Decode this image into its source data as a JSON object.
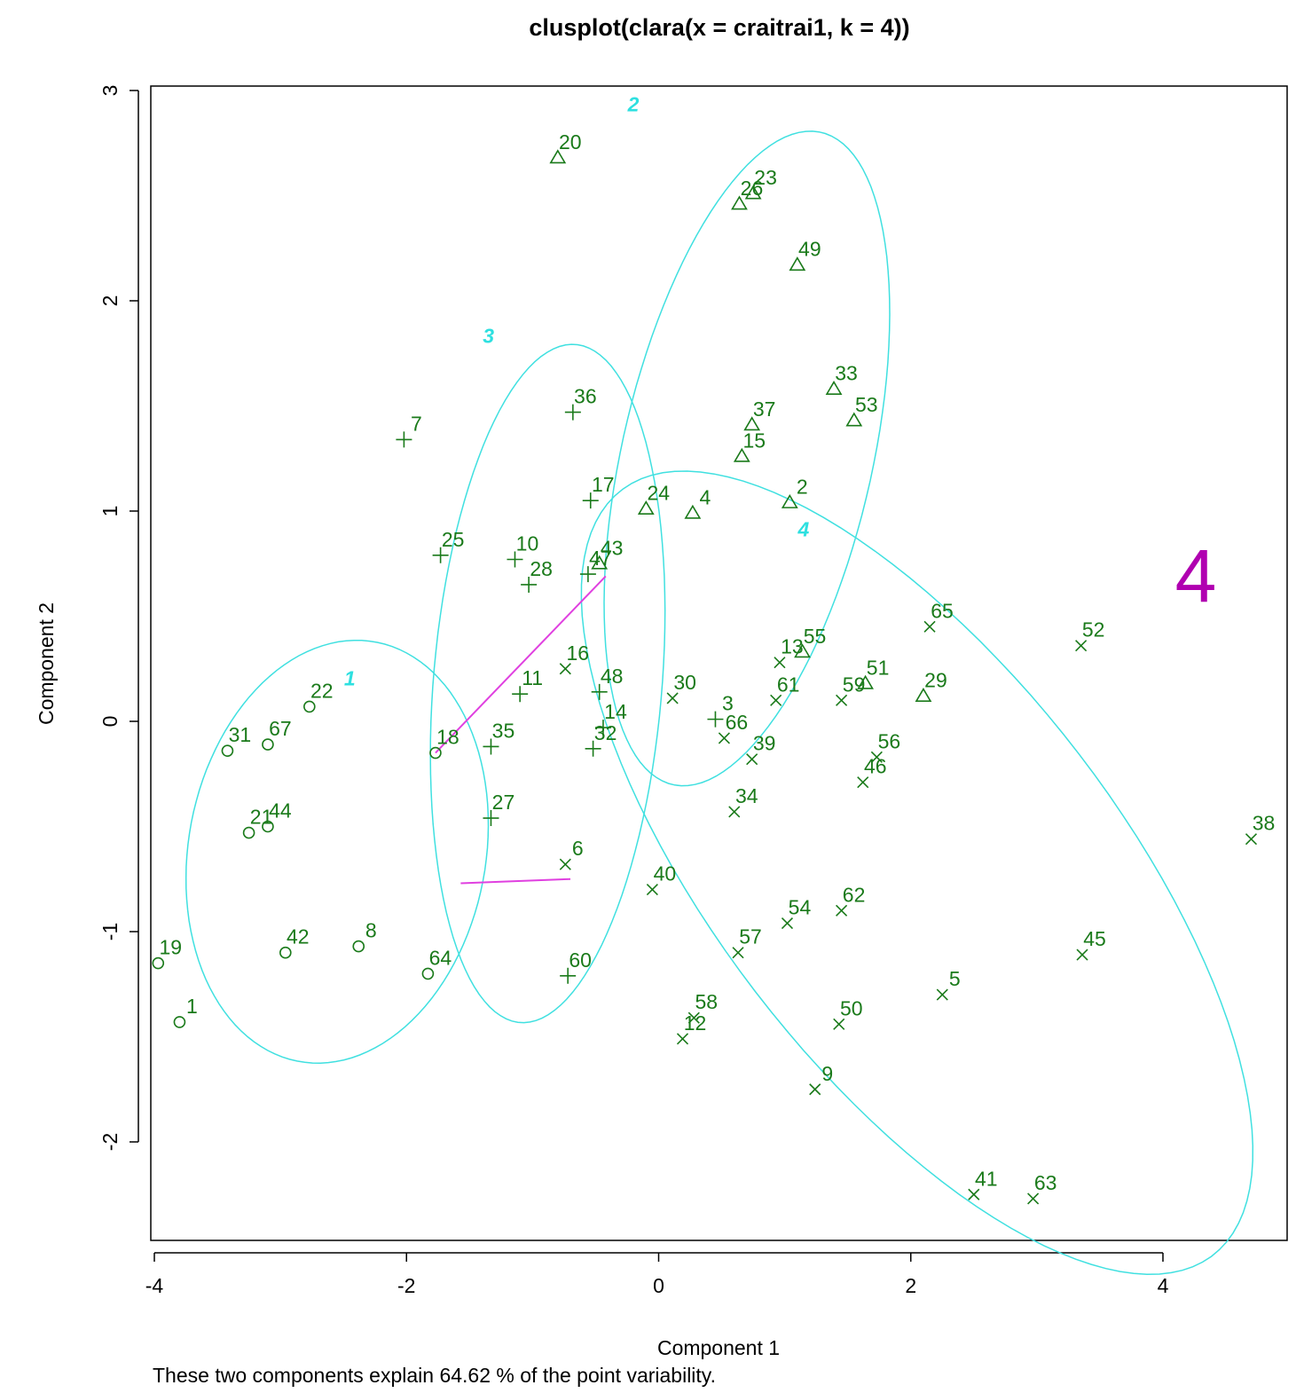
{
  "title": "clusplot(clara(x = craitrai1, k = 4))",
  "xlabel": "Component 1",
  "ylabel": "Component 2",
  "footnote": "These two components explain 64.62 % of the point variability.",
  "annotation": "4",
  "colors": {
    "points": "#1a7a1a",
    "ellipses": "#40e0e0",
    "links": "#e040e0",
    "annotation": "#b000b0"
  },
  "chart_data": {
    "type": "scatter",
    "xlim": [
      -4.0,
      5.0
    ],
    "ylim": [
      -2.45,
      3.0
    ],
    "xticks": [
      -4,
      -2,
      0,
      2,
      4
    ],
    "yticks": [
      -2,
      -1,
      0,
      1,
      2,
      3
    ],
    "x_tick_labels": [
      "-4",
      "-2",
      "0",
      "2",
      "4"
    ],
    "y_tick_labels": [
      "-2",
      "-1",
      "0",
      "1",
      "2",
      "3"
    ],
    "clusters": [
      {
        "label": "1",
        "symbol": "circle",
        "label_x": -2.45,
        "label_y": 0.17,
        "ellipse": {
          "cx": -2.55,
          "cy": -0.62,
          "rx": 1.22,
          "ry": 0.98,
          "angle": 18
        },
        "points": [
          {
            "id": "1",
            "x": -3.8,
            "y": -1.43
          },
          {
            "id": "8",
            "x": -2.38,
            "y": -1.07
          },
          {
            "id": "18",
            "x": -1.77,
            "y": -0.15
          },
          {
            "id": "19",
            "x": -3.97,
            "y": -1.15
          },
          {
            "id": "21",
            "x": -3.25,
            "y": -0.53
          },
          {
            "id": "22",
            "x": -2.77,
            "y": 0.07
          },
          {
            "id": "31",
            "x": -3.42,
            "y": -0.14
          },
          {
            "id": "42",
            "x": -2.96,
            "y": -1.1
          },
          {
            "id": "44",
            "x": -3.1,
            "y": -0.5
          },
          {
            "id": "64",
            "x": -1.83,
            "y": -1.2
          },
          {
            "id": "67",
            "x": -3.1,
            "y": -0.11
          }
        ]
      },
      {
        "label": "2",
        "symbol": "triangle",
        "label_x": -0.2,
        "label_y": 2.9,
        "ellipse": {
          "cx": 0.7,
          "cy": 1.25,
          "rx": 1.68,
          "ry": 0.94,
          "angle": 63
        },
        "points": [
          {
            "id": "2",
            "x": 1.04,
            "y": 1.04
          },
          {
            "id": "4",
            "x": 0.27,
            "y": 0.99
          },
          {
            "id": "15",
            "x": 0.66,
            "y": 1.26
          },
          {
            "id": "20",
            "x": -0.8,
            "y": 2.68
          },
          {
            "id": "23",
            "x": 0.75,
            "y": 2.51
          },
          {
            "id": "24",
            "x": -0.1,
            "y": 1.01
          },
          {
            "id": "26",
            "x": 0.64,
            "y": 2.46
          },
          {
            "id": "29",
            "x": 2.1,
            "y": 0.12
          },
          {
            "id": "33",
            "x": 1.39,
            "y": 1.58
          },
          {
            "id": "37",
            "x": 0.74,
            "y": 1.41
          },
          {
            "id": "43",
            "x": -0.47,
            "y": 0.75
          },
          {
            "id": "49",
            "x": 1.1,
            "y": 2.17
          },
          {
            "id": "51",
            "x": 1.64,
            "y": 0.18
          },
          {
            "id": "53",
            "x": 1.55,
            "y": 1.43
          },
          {
            "id": "55",
            "x": 1.14,
            "y": 0.33
          }
        ]
      },
      {
        "label": "3",
        "symbol": "plus",
        "label_x": -1.35,
        "label_y": 1.8,
        "ellipse": {
          "cx": -0.88,
          "cy": 0.18,
          "rx": 1.63,
          "ry": 0.9,
          "angle": 80
        },
        "points": [
          {
            "id": "3",
            "x": 0.45,
            "y": 0.01
          },
          {
            "id": "7",
            "x": -2.02,
            "y": 1.34
          },
          {
            "id": "10",
            "x": -1.14,
            "y": 0.77
          },
          {
            "id": "11",
            "x": -1.1,
            "y": 0.13
          },
          {
            "id": "14",
            "x": -0.44,
            "y": -0.03
          },
          {
            "id": "17",
            "x": -0.54,
            "y": 1.05
          },
          {
            "id": "25",
            "x": -1.73,
            "y": 0.79
          },
          {
            "id": "27",
            "x": -1.33,
            "y": -0.46
          },
          {
            "id": "28",
            "x": -1.03,
            "y": 0.65
          },
          {
            "id": "32",
            "x": -0.52,
            "y": -0.13
          },
          {
            "id": "35",
            "x": -1.33,
            "y": -0.12
          },
          {
            "id": "36",
            "x": -0.68,
            "y": 1.47
          },
          {
            "id": "47",
            "x": -0.56,
            "y": 0.7
          },
          {
            "id": "48",
            "x": -0.47,
            "y": 0.14
          },
          {
            "id": "60",
            "x": -0.72,
            "y": -1.21
          }
        ]
      },
      {
        "label": "4",
        "symbol": "cross",
        "label_x": 1.15,
        "label_y": 0.88,
        "ellipse": {
          "cx": 2.05,
          "cy": -0.72,
          "rx": 3.05,
          "ry": 1.2,
          "angle": -32
        },
        "points": [
          {
            "id": "5",
            "x": 2.25,
            "y": -1.3
          },
          {
            "id": "6",
            "x": -0.74,
            "y": -0.68
          },
          {
            "id": "9",
            "x": 1.24,
            "y": -1.75
          },
          {
            "id": "12",
            "x": 0.19,
            "y": -1.51
          },
          {
            "id": "13",
            "x": 0.96,
            "y": 0.28
          },
          {
            "id": "16",
            "x": -0.74,
            "y": 0.25
          },
          {
            "id": "30",
            "x": 0.11,
            "y": 0.11
          },
          {
            "id": "34",
            "x": 0.6,
            "y": -0.43
          },
          {
            "id": "38",
            "x": 4.7,
            "y": -0.56
          },
          {
            "id": "39",
            "x": 0.74,
            "y": -0.18
          },
          {
            "id": "40",
            "x": -0.05,
            "y": -0.8
          },
          {
            "id": "41",
            "x": 2.5,
            "y": -2.25
          },
          {
            "id": "45",
            "x": 3.36,
            "y": -1.11
          },
          {
            "id": "46",
            "x": 1.62,
            "y": -0.29
          },
          {
            "id": "50",
            "x": 1.43,
            "y": -1.44
          },
          {
            "id": "52",
            "x": 3.35,
            "y": 0.36
          },
          {
            "id": "54",
            "x": 1.02,
            "y": -0.96
          },
          {
            "id": "56",
            "x": 1.73,
            "y": -0.17
          },
          {
            "id": "57",
            "x": 0.63,
            "y": -1.1
          },
          {
            "id": "58",
            "x": 0.28,
            "y": -1.41
          },
          {
            "id": "59",
            "x": 1.45,
            "y": 0.1
          },
          {
            "id": "61",
            "x": 0.93,
            "y": 0.1
          },
          {
            "id": "62",
            "x": 1.45,
            "y": -0.9
          },
          {
            "id": "63",
            "x": 2.97,
            "y": -2.27
          },
          {
            "id": "65",
            "x": 2.15,
            "y": 0.45
          },
          {
            "id": "66",
            "x": 0.52,
            "y": -0.08
          }
        ]
      }
    ],
    "links": [
      {
        "x1": -1.77,
        "y1": -0.15,
        "x2": -0.42,
        "y2": 0.69
      },
      {
        "x1": -1.57,
        "y1": -0.77,
        "x2": -0.7,
        "y2": -0.75
      }
    ]
  }
}
